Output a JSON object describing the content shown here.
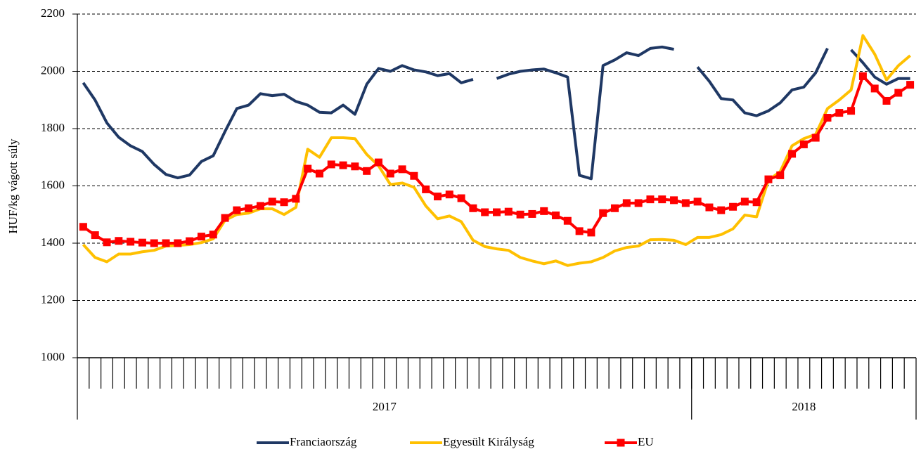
{
  "chart_data": {
    "type": "line",
    "ylabel": "HUF/kg vágott súly",
    "categories": [
      null,
      null,
      null,
      null,
      null,
      null,
      null,
      null,
      null,
      null,
      null,
      null,
      null,
      null,
      null,
      null,
      null,
      null,
      null,
      null,
      null,
      null,
      null,
      null,
      null,
      null,
      null,
      null,
      null,
      null,
      null,
      null,
      null,
      null,
      null,
      null,
      null,
      null,
      null,
      null,
      null,
      null,
      null,
      null,
      null,
      null,
      null,
      null,
      null,
      null,
      null,
      null,
      null,
      null,
      null,
      null,
      null,
      null,
      null,
      null,
      null,
      null,
      null,
      null,
      null,
      null,
      null,
      null,
      null,
      null,
      null
    ],
    "year_groups": [
      {
        "label": "2017",
        "count": 52
      },
      {
        "label": "2018",
        "count": 19
      }
    ],
    "ylim": [
      1000,
      2200
    ],
    "yticks": [
      1000,
      1200,
      1400,
      1600,
      1800,
      2000,
      2200
    ],
    "grid": true,
    "legend": "bottom",
    "series": [
      {
        "name": "Franciaország",
        "color": "#1f3864",
        "marker": false,
        "values": [
          1960,
          1900,
          1820,
          1770,
          1740,
          1720,
          1675,
          1640,
          1628,
          1638,
          1685,
          1705,
          1790,
          1870,
          1882,
          1922,
          1915,
          1920,
          1895,
          1882,
          1857,
          1855,
          1882,
          1850,
          1955,
          2010,
          2000,
          2020,
          2005,
          1998,
          1985,
          1992,
          1960,
          1972,
          null,
          1975,
          1990,
          2000,
          2005,
          2008,
          1995,
          1980,
          1637,
          1625,
          2020,
          2040,
          2065,
          2055,
          2080,
          2085,
          2077,
          null,
          2015,
          1965,
          1905,
          1900,
          1855,
          1845,
          1862,
          1890,
          1935,
          1945,
          1995,
          2080,
          null,
          2075,
          2030,
          1980,
          1955,
          1975,
          1975
        ]
      },
      {
        "name": "Egyesült Királyság",
        "color": "#ffc000",
        "marker": false,
        "values": [
          1395,
          1350,
          1335,
          1362,
          1362,
          1370,
          1375,
          1390,
          1392,
          1395,
          1402,
          1415,
          1480,
          1500,
          1505,
          1520,
          1520,
          1500,
          1525,
          1728,
          1700,
          1768,
          1768,
          1765,
          1710,
          1670,
          1605,
          1610,
          1595,
          1530,
          1485,
          1495,
          1475,
          1410,
          1388,
          1380,
          1375,
          1350,
          1338,
          1328,
          1338,
          1322,
          1330,
          1335,
          1350,
          1373,
          1385,
          1390,
          1412,
          1413,
          1410,
          1395,
          1420,
          1420,
          1430,
          1450,
          1498,
          1492,
          1620,
          1650,
          1740,
          1765,
          1780,
          1870,
          1900,
          1935,
          2125,
          2060,
          1970,
          2020,
          2055
        ]
      },
      {
        "name": "EU",
        "color": "#ff0000",
        "marker": true,
        "values": [
          1457,
          1428,
          1403,
          1408,
          1405,
          1402,
          1400,
          1400,
          1400,
          1407,
          1423,
          1430,
          1488,
          1515,
          1522,
          1530,
          1545,
          1543,
          1555,
          1660,
          1643,
          1675,
          1672,
          1668,
          1652,
          1682,
          1643,
          1658,
          1635,
          1588,
          1563,
          1570,
          1557,
          1522,
          1508,
          1508,
          1510,
          1500,
          1502,
          1512,
          1497,
          1478,
          1442,
          1437,
          1505,
          1522,
          1540,
          1540,
          1553,
          1553,
          1550,
          1540,
          1545,
          1525,
          1515,
          1527,
          1545,
          1543,
          1623,
          1637,
          1712,
          1745,
          1768,
          1838,
          1855,
          1862,
          1983,
          1940,
          1897,
          1925,
          1953
        ]
      }
    ]
  }
}
